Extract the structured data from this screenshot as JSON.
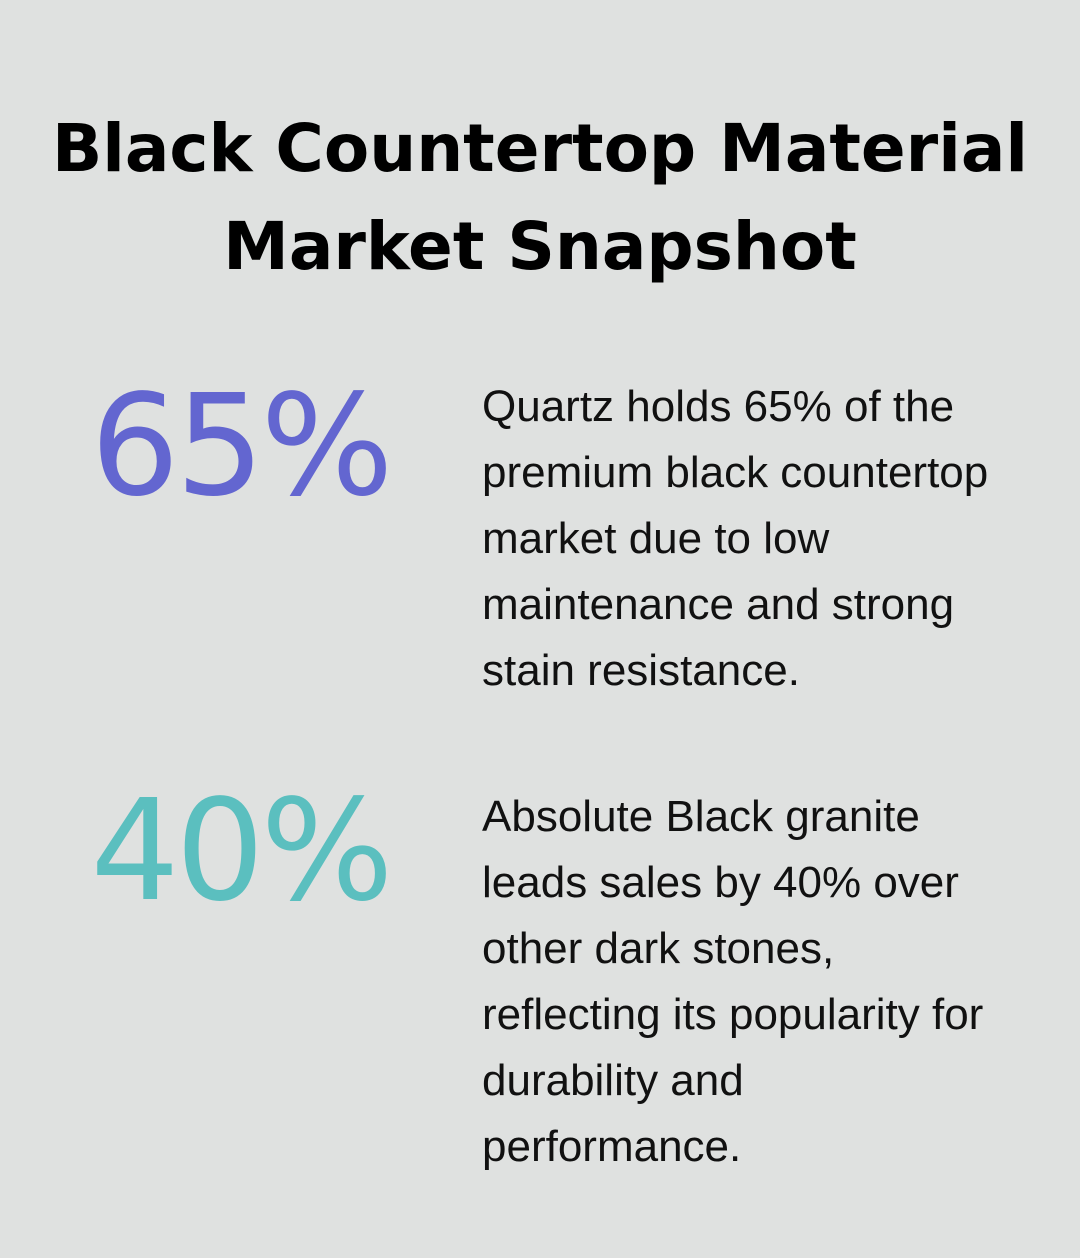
{
  "title": "Black Countertop Material Market Snapshot",
  "colors": {
    "stat1": "#6366d0",
    "stat2": "#5bbfbf",
    "background": "#dfe1e0"
  },
  "stats": [
    {
      "value": "65%",
      "text": "Quartz holds 65% of the premium black countertop market due to low maintenance and strong stain resistance."
    },
    {
      "value": "40%",
      "text": "Absolute Black granite leads sales by 40% over other dark stones, reflecting its popularity for durability and performance."
    }
  ]
}
